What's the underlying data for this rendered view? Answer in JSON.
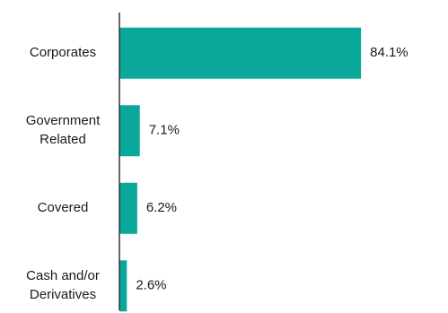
{
  "chart_data": {
    "type": "bar",
    "orientation": "horizontal",
    "categories": [
      [
        "Corporates"
      ],
      [
        "Government",
        "Related"
      ],
      [
        "Covered"
      ],
      [
        "Cash and/or",
        "Derivatives"
      ]
    ],
    "values": [
      84.1,
      7.1,
      6.2,
      2.6
    ],
    "value_labels": [
      "84.1%",
      "7.1%",
      "6.2%",
      "2.6%"
    ],
    "xlim": [
      0,
      100
    ],
    "bar_color": "#0aa89a",
    "axis_color": "#333333",
    "grid": false,
    "legend": "none"
  }
}
